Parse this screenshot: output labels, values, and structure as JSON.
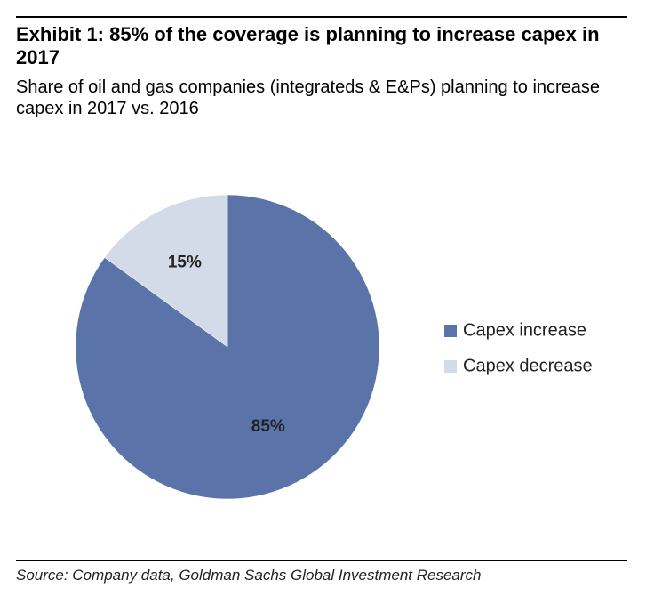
{
  "header": {
    "title": "Exhibit 1: 85% of the coverage is planning to increase capex in 2017",
    "subtitle": "Share of oil and gas companies (integrateds & E&Ps) planning to increase capex in 2017 vs. 2016"
  },
  "chart_data": {
    "type": "pie",
    "categories": [
      "Capex increase",
      "Capex decrease"
    ],
    "values": [
      85,
      15
    ],
    "data_labels": [
      "85%",
      "15%"
    ],
    "colors": [
      "#5a73a8",
      "#d3dae8"
    ],
    "legend_placement": "right"
  },
  "footer": {
    "source": "Source: Company data, Goldman Sachs Global Investment Research"
  }
}
